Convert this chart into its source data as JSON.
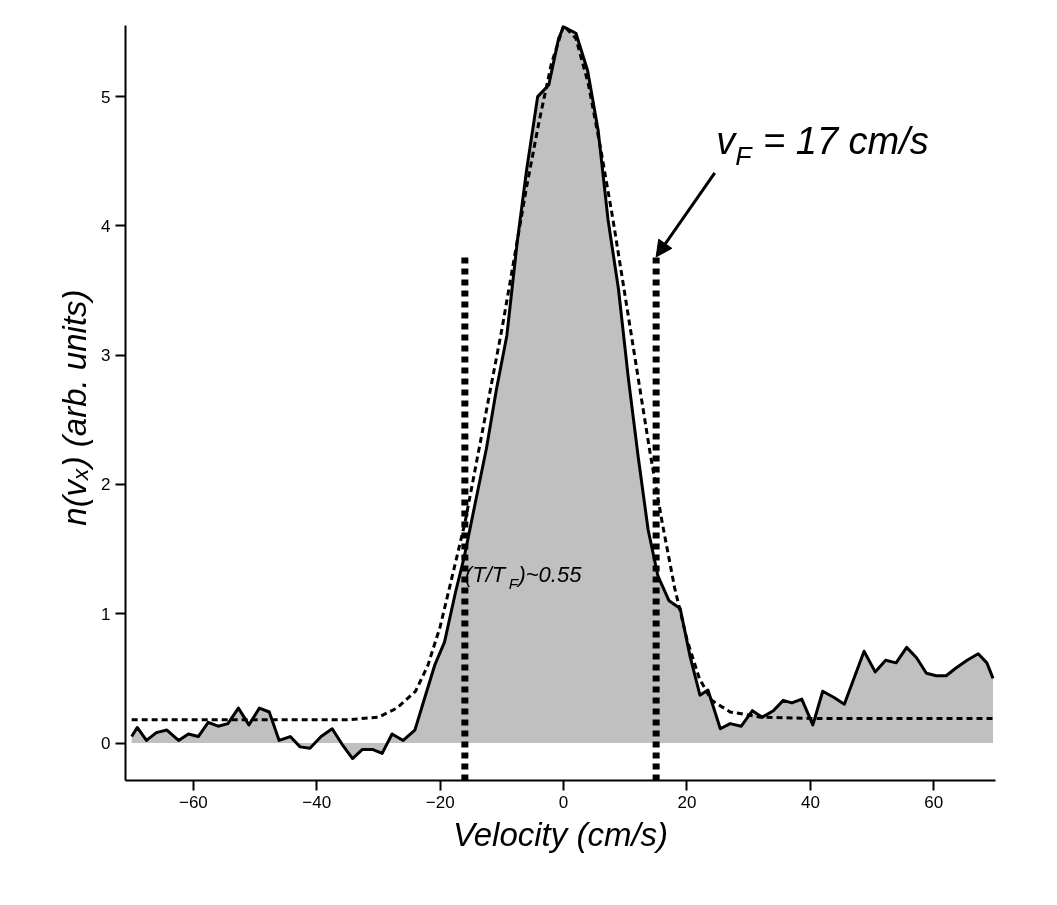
{
  "chart_data": {
    "type": "area",
    "xlabel": "Velocity (cm/s)",
    "ylabel": "n(vₓ)  (arb. units)",
    "xlim": [
      -71,
      70
    ],
    "ylim": [
      -0.29,
      5.55
    ],
    "xticks": [
      -60,
      -40,
      -20,
      0,
      20,
      40,
      60
    ],
    "yticks": [
      0,
      1,
      2,
      3,
      4,
      5
    ],
    "grid": false,
    "series": [
      {
        "color": "#c0c0c0",
        "x": [
          -70.0,
          -69.1,
          -67.6,
          -66.0,
          -64.3,
          -62.4,
          -60.8,
          -59.2,
          -57.6,
          -56.0,
          -54.4,
          -52.7,
          -51.0,
          -49.3,
          -47.7,
          -46.1,
          -44.3,
          -42.7,
          -41.1,
          -39.3,
          -37.5,
          -35.9,
          -34.2,
          -32.6,
          -31.0,
          -29.4,
          -27.8,
          -26.0,
          -24.1,
          -22.5,
          -20.9,
          -19.3,
          -17.5,
          -16.1,
          -14.3,
          -12.5,
          -10.9,
          -9.2,
          -7.5,
          -6.0,
          -4.2,
          -2.4,
          -0.8,
          0.0,
          2.0,
          3.9,
          5.6,
          7.2,
          8.9,
          10.5,
          12.1,
          13.7,
          15.3,
          17.1,
          18.9,
          20.5,
          22.1,
          23.4,
          25.4,
          27.0,
          28.8,
          30.6,
          32.2,
          34.0,
          35.6,
          37.0,
          38.6,
          40.4,
          42.0,
          43.9,
          45.5,
          48.7,
          50.5,
          52.2,
          53.9,
          55.6,
          57.2,
          58.8,
          60.4,
          62.0,
          63.6,
          65.4,
          67.2,
          68.6,
          69.6
        ],
        "values": [
          0.05,
          0.12,
          0.02,
          0.08,
          0.1,
          0.02,
          0.07,
          0.05,
          0.16,
          0.13,
          0.15,
          0.27,
          0.14,
          0.27,
          0.24,
          0.02,
          0.05,
          -0.03,
          -0.04,
          0.05,
          0.11,
          -0.01,
          -0.12,
          -0.05,
          -0.05,
          -0.08,
          0.07,
          0.02,
          0.1,
          0.35,
          0.6,
          0.78,
          1.17,
          1.44,
          1.86,
          2.28,
          2.73,
          3.15,
          3.88,
          4.43,
          5.0,
          5.09,
          5.45,
          5.54,
          5.49,
          5.2,
          4.74,
          4.05,
          3.51,
          2.82,
          2.21,
          1.65,
          1.29,
          1.1,
          1.04,
          0.67,
          0.37,
          0.41,
          0.11,
          0.15,
          0.13,
          0.25,
          0.2,
          0.25,
          0.33,
          0.31,
          0.34,
          0.14,
          0.4,
          0.35,
          0.3,
          0.71,
          0.55,
          0.64,
          0.62,
          0.74,
          0.66,
          0.54,
          0.52,
          0.52,
          0.58,
          0.64,
          0.69,
          0.62,
          0.5
        ]
      },
      {
        "type": "line",
        "color": "#000000",
        "line_style": "dashed",
        "x": [
          -70,
          -35,
          -30,
          -27,
          -24,
          -22,
          -20,
          -18,
          -16,
          -14,
          -12,
          -10,
          -8,
          -6,
          -4,
          -2,
          0,
          2,
          4,
          6,
          8,
          10,
          12,
          14,
          16,
          18,
          20,
          22,
          24,
          27,
          32,
          40,
          70
        ],
        "values": [
          0.18,
          0.18,
          0.2,
          0.27,
          0.4,
          0.6,
          0.9,
          1.3,
          1.7,
          2.2,
          2.7,
          3.2,
          3.75,
          4.3,
          4.8,
          5.25,
          5.55,
          5.45,
          5.1,
          4.6,
          4.05,
          3.45,
          2.85,
          2.25,
          1.7,
          1.2,
          0.8,
          0.5,
          0.33,
          0.24,
          0.2,
          0.19,
          0.19
        ]
      },
      {
        "type": "line",
        "color": "#000000",
        "line_style": "dotted",
        "x": [
          -16,
          -16
        ],
        "values": [
          -0.29,
          3.76
        ]
      },
      {
        "type": "line",
        "color": "#000000",
        "line_style": "dotted",
        "x": [
          15,
          15
        ],
        "values": [
          -0.29,
          3.76
        ]
      }
    ],
    "annotations": [
      {
        "text": "v$_{F}$ = 17 cm/s",
        "x": 15,
        "y": 3.76
      },
      {
        "text": "(T/T$_{F}$)~0.55",
        "x": -16,
        "y": 1.3
      }
    ]
  }
}
